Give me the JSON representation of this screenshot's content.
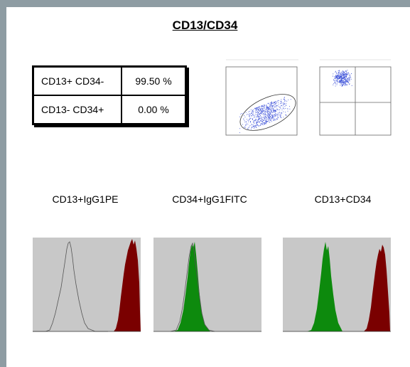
{
  "title": "CD13/CD34",
  "stats": [
    {
      "label": "CD13+ CD34-",
      "value": "99.50 %"
    },
    {
      "label": "CD13- CD34+",
      "value": "0.00 %"
    }
  ],
  "histograms": [
    {
      "label": "CD13+IgG1PE",
      "fill": "#7a0000",
      "kind": "red-with-outline"
    },
    {
      "label": "CD34+IgG1FITC",
      "fill": "#0d8a0d",
      "kind": "green-with-outline"
    },
    {
      "label": "CD13+CD34",
      "fill": "#0d8a0d",
      "kind": "green-and-red"
    }
  ],
  "colors": {
    "frame": "#8e9ca3",
    "plot_bg": "#c8c8c8",
    "dots": "#3a4fd8",
    "green": "#0d8a0d",
    "red": "#7a0000"
  }
}
